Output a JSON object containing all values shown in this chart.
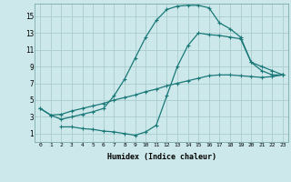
{
  "xlabel": "Humidex (Indice chaleur)",
  "xlim": [
    -0.5,
    23.5
  ],
  "ylim": [
    0,
    16.5
  ],
  "bg_color": "#cce8ea",
  "grid_color": "#aacccc",
  "line_color": "#1a7878",
  "line1_x": [
    0,
    1,
    2,
    3,
    4,
    5,
    6,
    7,
    8,
    9,
    10,
    11,
    12,
    13,
    14,
    15,
    16,
    17,
    18,
    19,
    20,
    21,
    22,
    23
  ],
  "line1_y": [
    4.0,
    3.2,
    3.3,
    3.7,
    4.0,
    4.3,
    4.6,
    5.0,
    5.3,
    5.6,
    6.0,
    6.3,
    6.7,
    7.0,
    7.3,
    7.6,
    7.9,
    8.0,
    8.0,
    7.9,
    7.8,
    7.7,
    7.8,
    8.0
  ],
  "line2_x": [
    0,
    1,
    2,
    3,
    4,
    5,
    6,
    7,
    8,
    9,
    10,
    11,
    12,
    13,
    14,
    15,
    16,
    17,
    18,
    19,
    20,
    21,
    22,
    23
  ],
  "line2_y": [
    4.0,
    3.2,
    2.7,
    3.0,
    3.3,
    3.6,
    4.0,
    5.5,
    7.5,
    10.0,
    12.5,
    14.5,
    15.8,
    16.2,
    16.3,
    16.3,
    16.0,
    14.2,
    13.5,
    12.5,
    9.5,
    8.5,
    8.0,
    8.0
  ],
  "line3_x": [
    2,
    3,
    4,
    5,
    6,
    7,
    8,
    9,
    10,
    11,
    12,
    13,
    14,
    15,
    16,
    17,
    18,
    19,
    20,
    21,
    22,
    23
  ],
  "line3_y": [
    1.8,
    1.8,
    1.6,
    1.5,
    1.3,
    1.2,
    1.0,
    0.8,
    1.2,
    2.0,
    5.5,
    9.0,
    11.5,
    13.0,
    12.8,
    12.7,
    12.5,
    12.3,
    9.5,
    9.0,
    8.5,
    8.0
  ],
  "xtick_labels": [
    "0",
    "1",
    "2",
    "3",
    "4",
    "5",
    "6",
    "7",
    "8",
    "9",
    "10",
    "11",
    "12",
    "13",
    "14",
    "15",
    "16",
    "17",
    "18",
    "19",
    "20",
    "21",
    "22",
    "23"
  ],
  "ytick_vals": [
    1,
    3,
    5,
    7,
    9,
    11,
    13,
    15
  ],
  "marker": "+",
  "markersize": 3,
  "linewidth": 0.9
}
